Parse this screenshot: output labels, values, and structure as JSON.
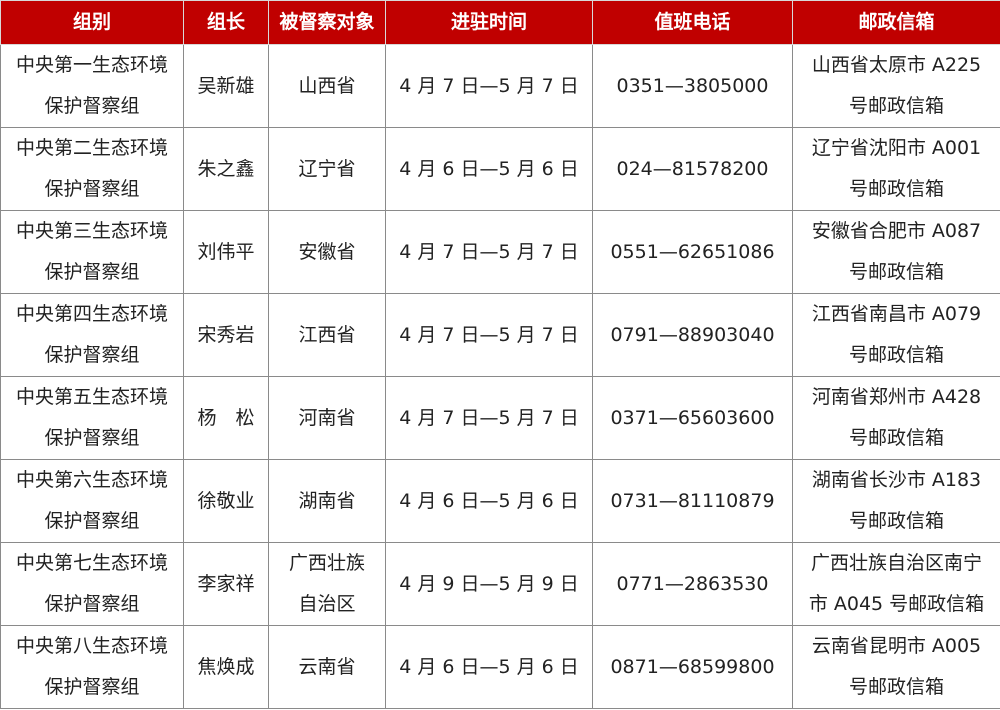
{
  "header_color": "#c00000",
  "columns": [
    "组别",
    "组长",
    "被督察对象",
    "进驻时间",
    "值班电话",
    "邮政信箱"
  ],
  "rows": [
    {
      "group": [
        "中央第一生态环境",
        "保护督察组"
      ],
      "leader": "吴新雄",
      "target": [
        "山西省"
      ],
      "period": "4 月 7 日—5 月 7 日",
      "phone": "0351—3805000",
      "mailbox": [
        "山西省太原市 A225",
        "号邮政信箱"
      ]
    },
    {
      "group": [
        "中央第二生态环境",
        "保护督察组"
      ],
      "leader": "朱之鑫",
      "target": [
        "辽宁省"
      ],
      "period": "4 月 6 日—5 月 6 日",
      "phone": "024—81578200",
      "mailbox": [
        "辽宁省沈阳市 A001",
        "号邮政信箱"
      ]
    },
    {
      "group": [
        "中央第三生态环境",
        "保护督察组"
      ],
      "leader": "刘伟平",
      "target": [
        "安徽省"
      ],
      "period": "4 月 7 日—5 月 7 日",
      "phone": "0551—62651086",
      "mailbox": [
        "安徽省合肥市 A087",
        "号邮政信箱"
      ]
    },
    {
      "group": [
        "中央第四生态环境",
        "保护督察组"
      ],
      "leader": "宋秀岩",
      "target": [
        "江西省"
      ],
      "period": "4 月 7 日—5 月 7 日",
      "phone": "0791—88903040",
      "mailbox": [
        "江西省南昌市 A079",
        "号邮政信箱"
      ]
    },
    {
      "group": [
        "中央第五生态环境",
        "保护督察组"
      ],
      "leader": "杨　松",
      "target": [
        "河南省"
      ],
      "period": "4 月 7 日—5 月 7 日",
      "phone": "0371—65603600",
      "mailbox": [
        "河南省郑州市 A428",
        "号邮政信箱"
      ]
    },
    {
      "group": [
        "中央第六生态环境",
        "保护督察组"
      ],
      "leader": "徐敬业",
      "target": [
        "湖南省"
      ],
      "period": "4 月 6 日—5 月 6 日",
      "phone": "0731—81110879",
      "mailbox": [
        "湖南省长沙市 A183",
        "号邮政信箱"
      ]
    },
    {
      "group": [
        "中央第七生态环境",
        "保护督察组"
      ],
      "leader": "李家祥",
      "target": [
        "广西壮族",
        "自治区"
      ],
      "period": "4 月 9 日—5 月 9 日",
      "phone": "0771—2863530",
      "mailbox": [
        "广西壮族自治区南宁",
        "市 A045 号邮政信箱"
      ]
    },
    {
      "group": [
        "中央第八生态环境",
        "保护督察组"
      ],
      "leader": "焦焕成",
      "target": [
        "云南省"
      ],
      "period": "4 月 6 日—5 月 6 日",
      "phone": "0871—68599800",
      "mailbox": [
        "云南省昆明市 A005",
        "号邮政信箱"
      ]
    }
  ]
}
